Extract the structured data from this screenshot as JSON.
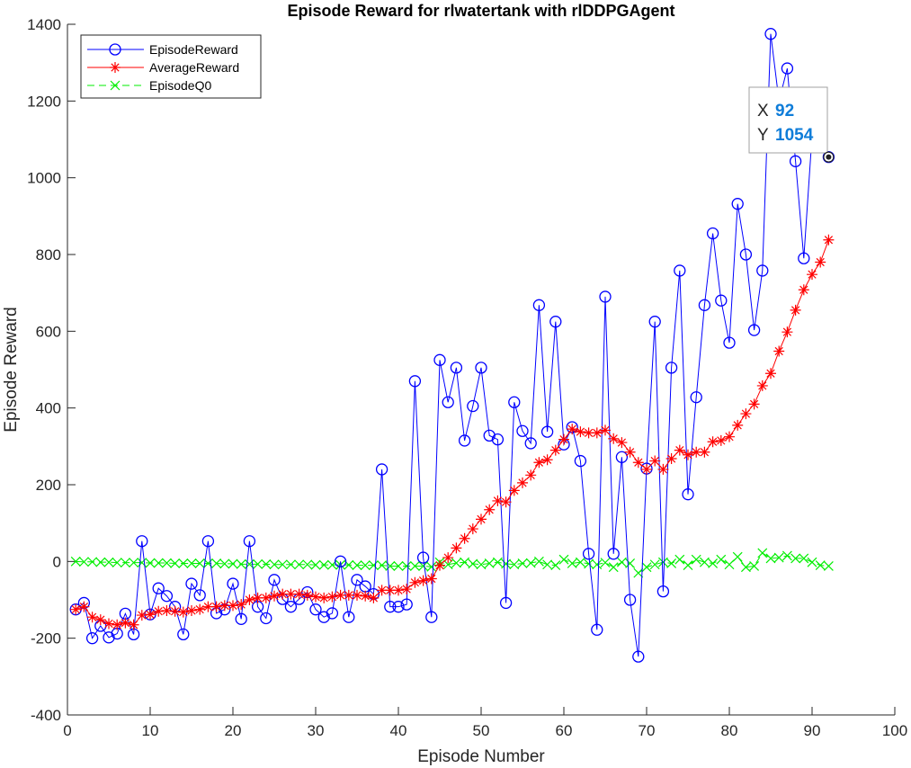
{
  "chart_data": {
    "type": "line",
    "title": "Episode Reward for rlwatertank with rlDDPGAgent",
    "xlabel": "Episode Number",
    "ylabel": "Episode Reward",
    "xlim": [
      0,
      100
    ],
    "ylim": [
      -400,
      1400
    ],
    "xticks": [
      0,
      10,
      20,
      30,
      40,
      50,
      60,
      70,
      80,
      90,
      100
    ],
    "yticks": [
      -400,
      -200,
      0,
      200,
      400,
      600,
      800,
      1000,
      1200,
      1400
    ],
    "grid": false,
    "legend_position": "top-left",
    "x": [
      1,
      2,
      3,
      4,
      5,
      6,
      7,
      8,
      9,
      10,
      11,
      12,
      13,
      14,
      15,
      16,
      17,
      18,
      19,
      20,
      21,
      22,
      23,
      24,
      25,
      26,
      27,
      28,
      29,
      30,
      31,
      32,
      33,
      34,
      35,
      36,
      37,
      38,
      39,
      40,
      41,
      42,
      43,
      44,
      45,
      46,
      47,
      48,
      49,
      50,
      51,
      52,
      53,
      54,
      55,
      56,
      57,
      58,
      59,
      60,
      61,
      62,
      63,
      64,
      65,
      66,
      67,
      68,
      69,
      70,
      71,
      72,
      73,
      74,
      75,
      76,
      77,
      78,
      79,
      80,
      81,
      82,
      83,
      84,
      85,
      86,
      87,
      88,
      89,
      90,
      91,
      92
    ],
    "series": [
      {
        "name": "EpisodeReward",
        "color": "#0000ff",
        "marker": "circle",
        "line": "solid",
        "values": [
          -125,
          -108,
          -200,
          -168,
          -198,
          -188,
          -136,
          -190,
          53,
          -138,
          -70,
          -90,
          -118,
          -190,
          -58,
          -88,
          53,
          -135,
          -125,
          -58,
          -150,
          53,
          -118,
          -148,
          -48,
          -98,
          -118,
          -98,
          -80,
          -125,
          -145,
          -135,
          0,
          -145,
          -48,
          -65,
          -85,
          240,
          -118,
          -118,
          -112,
          470,
          10,
          -145,
          525,
          415,
          505,
          315,
          405,
          505,
          328,
          318,
          -108,
          415,
          340,
          308,
          668,
          338,
          625,
          305,
          350,
          262,
          20,
          -178,
          690,
          20,
          272,
          -100,
          -248,
          242,
          625,
          -78,
          505,
          758,
          175,
          428,
          668,
          855,
          680,
          570,
          932,
          800,
          603,
          758,
          1375,
          1200,
          1285,
          1043,
          790,
          1110,
          1080,
          1054
        ]
      },
      {
        "name": "AverageReward",
        "color": "#ff0000",
        "marker": "asterisk",
        "line": "solid",
        "values": [
          -125,
          -118,
          -145,
          -152,
          -162,
          -165,
          -160,
          -165,
          -140,
          -138,
          -130,
          -128,
          -130,
          -132,
          -128,
          -125,
          -118,
          -118,
          -115,
          -115,
          -112,
          -100,
          -95,
          -95,
          -90,
          -85,
          -85,
          -85,
          -88,
          -92,
          -95,
          -92,
          -88,
          -88,
          -88,
          -90,
          -95,
          -75,
          -75,
          -75,
          -72,
          -55,
          -50,
          -45,
          -10,
          10,
          35,
          60,
          85,
          110,
          135,
          158,
          155,
          185,
          205,
          225,
          258,
          265,
          290,
          318,
          345,
          338,
          335,
          335,
          342,
          320,
          310,
          285,
          258,
          240,
          262,
          240,
          268,
          290,
          278,
          285,
          285,
          312,
          315,
          325,
          355,
          385,
          410,
          458,
          490,
          548,
          598,
          655,
          708,
          748,
          780,
          838
        ]
      },
      {
        "name": "EpisodeQ0",
        "color": "#00ee00",
        "marker": "x",
        "line": "dashed",
        "values": [
          0,
          -1,
          -1,
          -2,
          -2,
          -3,
          -3,
          -3,
          -3,
          -4,
          -4,
          -4,
          -5,
          -5,
          -5,
          -5,
          -5,
          -5,
          -6,
          -6,
          -7,
          -7,
          -7,
          -7,
          -8,
          -8,
          -8,
          -8,
          -8,
          -9,
          -9,
          -9,
          -9,
          -9,
          -10,
          -10,
          -10,
          -10,
          -12,
          -12,
          -12,
          -12,
          -12,
          -14,
          -2,
          -8,
          -4,
          -2,
          -6,
          -8,
          -5,
          -2,
          -6,
          -8,
          -5,
          -4,
          0,
          -8,
          -10,
          5,
          -5,
          -2,
          -6,
          -8,
          -3,
          -15,
          -2,
          -5,
          -30,
          -15,
          -8,
          -2,
          -5,
          5,
          -10,
          5,
          -2,
          -5,
          5,
          -8,
          12,
          -15,
          -12,
          22,
          8,
          10,
          15,
          8,
          8,
          -2,
          -10,
          -12
        ]
      }
    ],
    "datatip": {
      "x_label": "X",
      "x_value": "92",
      "y_label": "Y",
      "y_value": "1054",
      "target_x": 92,
      "target_y": 1054
    }
  }
}
